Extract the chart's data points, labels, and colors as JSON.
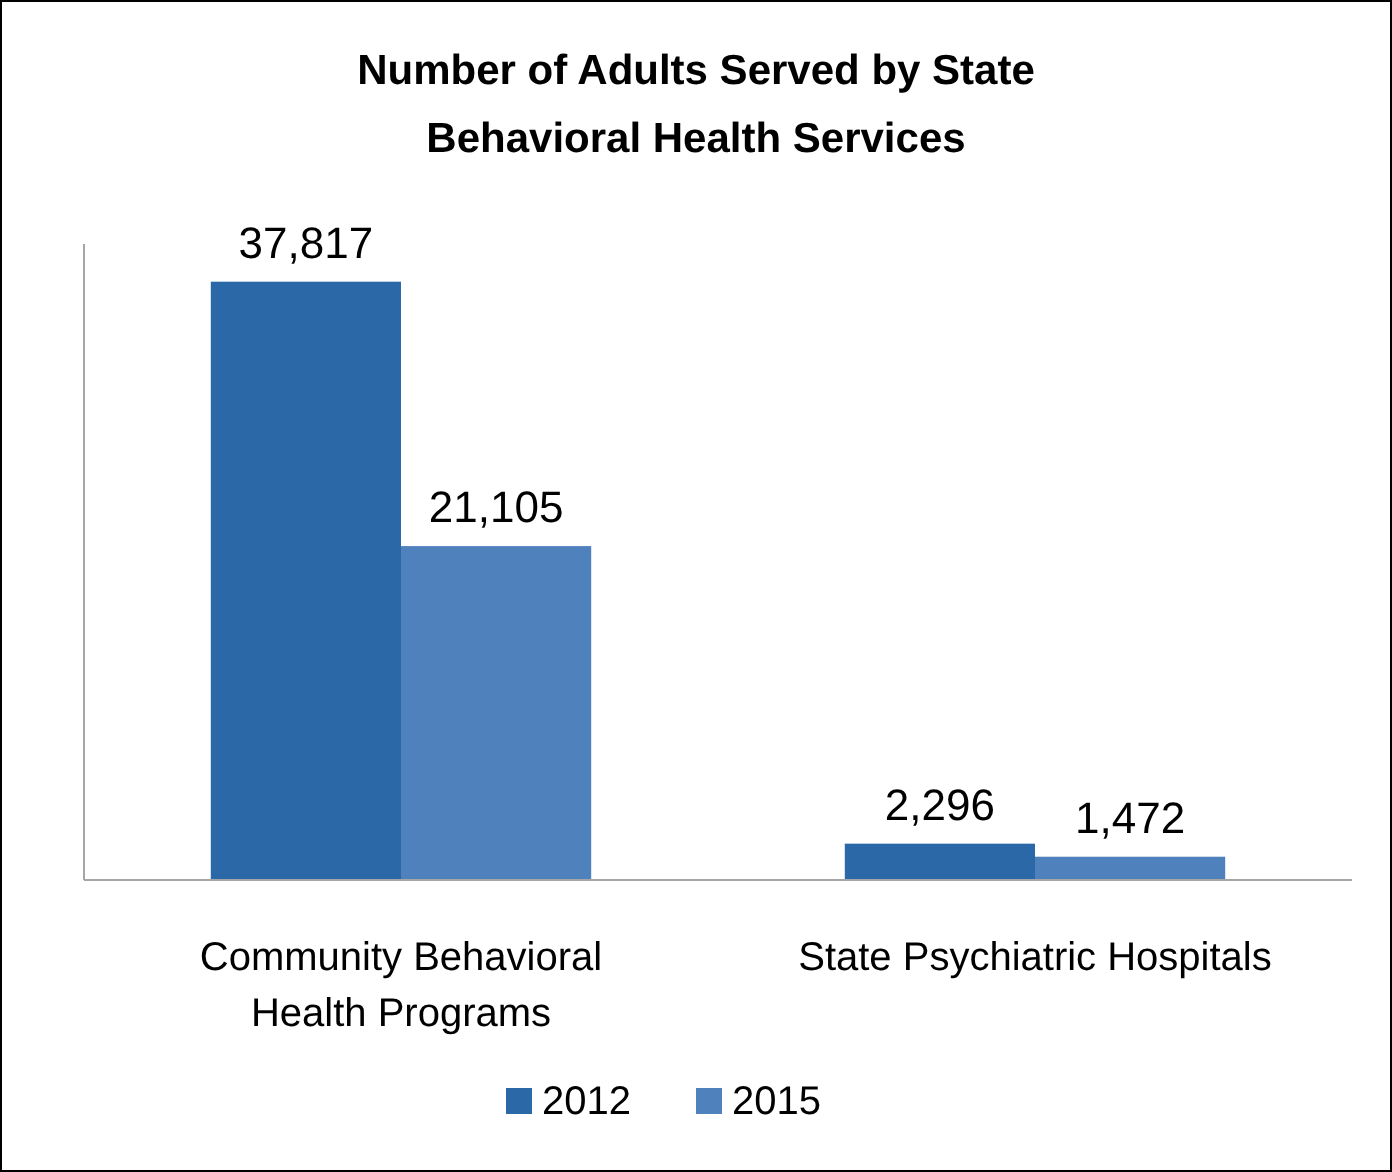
{
  "chart_data": {
    "type": "bar",
    "title": "Number of Adults Served by State Behavioral Health Services",
    "categories": [
      "Community Behavioral Health Programs",
      "State Psychiatric Hospitals"
    ],
    "series": [
      {
        "name": "2012",
        "color": "#2a68a8",
        "values": [
          37817,
          2296
        ],
        "value_labels": [
          "37,817",
          "2,296"
        ]
      },
      {
        "name": "2015",
        "color": "#4f81bd",
        "values": [
          21105,
          1472
        ],
        "value_labels": [
          "21,105",
          "1,472"
        ]
      }
    ],
    "legend": "bottom"
  }
}
